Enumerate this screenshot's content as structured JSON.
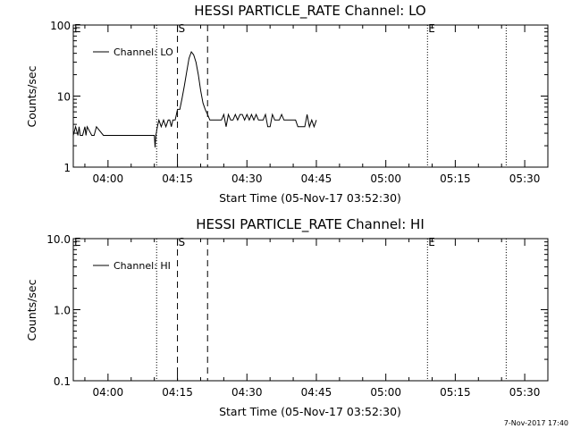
{
  "figure": {
    "timestamp": "7-Nov-2017 17:40"
  },
  "chart_data": [
    {
      "type": "line",
      "title": "HESSI PARTICLE_RATE Channel: LO",
      "xlabel": "Start Time (05-Nov-17 03:52:30)",
      "ylabel": "Counts/sec",
      "yscale": "log",
      "ylim": [
        1,
        100
      ],
      "yticks": [
        1,
        10,
        100
      ],
      "ytick_labels": [
        "1",
        "10",
        "100"
      ],
      "xlim": [
        "03:52:30",
        "05:35:00"
      ],
      "xticks": [
        "04:00",
        "04:15",
        "04:30",
        "04:45",
        "05:00",
        "05:15",
        "05:30"
      ],
      "legend": {
        "label": "Channel: LO",
        "position": "top-left"
      },
      "markers": [
        {
          "label": "E",
          "time": "03:52:30",
          "style": "dotted"
        },
        {
          "label": "",
          "time": "04:10:30",
          "style": "dotted"
        },
        {
          "label": "S",
          "time": "04:15:00",
          "style": "dashed"
        },
        {
          "label": "",
          "time": "04:21:30",
          "style": "dashed"
        },
        {
          "label": "E",
          "time": "05:09:00",
          "style": "dotted"
        },
        {
          "label": "",
          "time": "05:26:00",
          "style": "dotted"
        }
      ],
      "series": [
        {
          "name": "Channel: LO",
          "x": [
            "03:52:30",
            "03:53:00",
            "03:53:30",
            "03:53:45",
            "03:54:00",
            "03:54:30",
            "03:55:00",
            "03:55:15",
            "03:55:30",
            "03:56:30",
            "03:57:00",
            "03:57:30",
            "03:59:00",
            "03:59:30",
            "04:00:00",
            "04:10:00",
            "04:10:10",
            "04:10:20",
            "04:10:40",
            "04:11:00",
            "04:11:30",
            "04:12:00",
            "04:12:30",
            "04:13:00",
            "04:13:20",
            "04:13:40",
            "04:14:00",
            "04:14:30",
            "04:15:00",
            "04:15:30",
            "04:16:00",
            "04:16:30",
            "04:17:00",
            "04:17:30",
            "04:18:00",
            "04:18:30",
            "04:19:00",
            "04:19:30",
            "04:20:00",
            "04:20:30",
            "04:21:00",
            "04:21:30",
            "04:22:00",
            "04:22:30",
            "04:23:00",
            "04:23:30",
            "04:24:00",
            "04:24:30",
            "04:25:00",
            "04:25:30",
            "04:26:00",
            "04:26:30",
            "04:27:00",
            "04:27:30",
            "04:28:00",
            "04:28:30",
            "04:29:00",
            "04:29:30",
            "04:30:00",
            "04:30:30",
            "04:31:00",
            "04:31:30",
            "04:32:00",
            "04:32:30",
            "04:33:00",
            "04:33:30",
            "04:34:00",
            "04:34:30",
            "04:35:00",
            "04:35:30",
            "04:36:00",
            "04:36:30",
            "04:37:00",
            "04:37:30",
            "04:38:00",
            "04:38:30",
            "04:39:00",
            "04:39:30",
            "04:40:00",
            "04:40:30",
            "04:41:00",
            "04:41:30",
            "04:42:00",
            "04:42:30",
            "04:43:00",
            "04:43:30",
            "04:44:00",
            "04:44:30",
            "04:45:00"
          ],
          "y": [
            2.8,
            3.7,
            2.8,
            3.7,
            2.8,
            2.8,
            3.7,
            2.8,
            3.7,
            2.8,
            2.8,
            3.7,
            2.8,
            2.8,
            2.8,
            2.8,
            1.9,
            2.8,
            3.7,
            4.6,
            3.7,
            4.6,
            3.7,
            4.6,
            4.6,
            3.7,
            4.6,
            4.6,
            6.5,
            6.5,
            9.3,
            14,
            22,
            34,
            42,
            38,
            30,
            20,
            12,
            8,
            6.5,
            5.5,
            4.6,
            4.6,
            4.6,
            4.6,
            4.6,
            4.6,
            5.5,
            3.7,
            5.5,
            4.6,
            4.6,
            5.5,
            4.6,
            5.5,
            5.5,
            4.6,
            5.5,
            4.6,
            5.5,
            4.6,
            5.5,
            4.6,
            4.6,
            4.6,
            5.5,
            3.7,
            3.7,
            5.5,
            4.6,
            4.6,
            4.6,
            5.5,
            4.6,
            4.6,
            4.6,
            4.6,
            4.6,
            4.6,
            3.7,
            3.7,
            3.7,
            3.7,
            5.5,
            3.7,
            4.6,
            3.7,
            4.6
          ]
        }
      ]
    },
    {
      "type": "line",
      "title": "HESSI PARTICLE_RATE Channel: HI",
      "xlabel": "Start Time (05-Nov-17 03:52:30)",
      "ylabel": "Counts/sec",
      "yscale": "log",
      "ylim": [
        0.1,
        10
      ],
      "yticks": [
        0.1,
        1,
        10
      ],
      "ytick_labels": [
        "0.1",
        "1.0",
        "10.0"
      ],
      "xlim": [
        "03:52:30",
        "05:35:00"
      ],
      "xticks": [
        "04:00",
        "04:15",
        "04:30",
        "04:45",
        "05:00",
        "05:15",
        "05:30"
      ],
      "legend": {
        "label": "Channel: HI",
        "position": "top-left"
      },
      "markers": [
        {
          "label": "E",
          "time": "03:52:30",
          "style": "dotted"
        },
        {
          "label": "",
          "time": "04:10:30",
          "style": "dotted"
        },
        {
          "label": "S",
          "time": "04:15:00",
          "style": "dashed"
        },
        {
          "label": "",
          "time": "04:21:30",
          "style": "dashed"
        },
        {
          "label": "E",
          "time": "05:09:00",
          "style": "dotted"
        },
        {
          "label": "",
          "time": "05:26:00",
          "style": "dotted"
        }
      ],
      "series": [
        {
          "name": "Channel: HI",
          "x": [],
          "y": []
        }
      ]
    }
  ]
}
